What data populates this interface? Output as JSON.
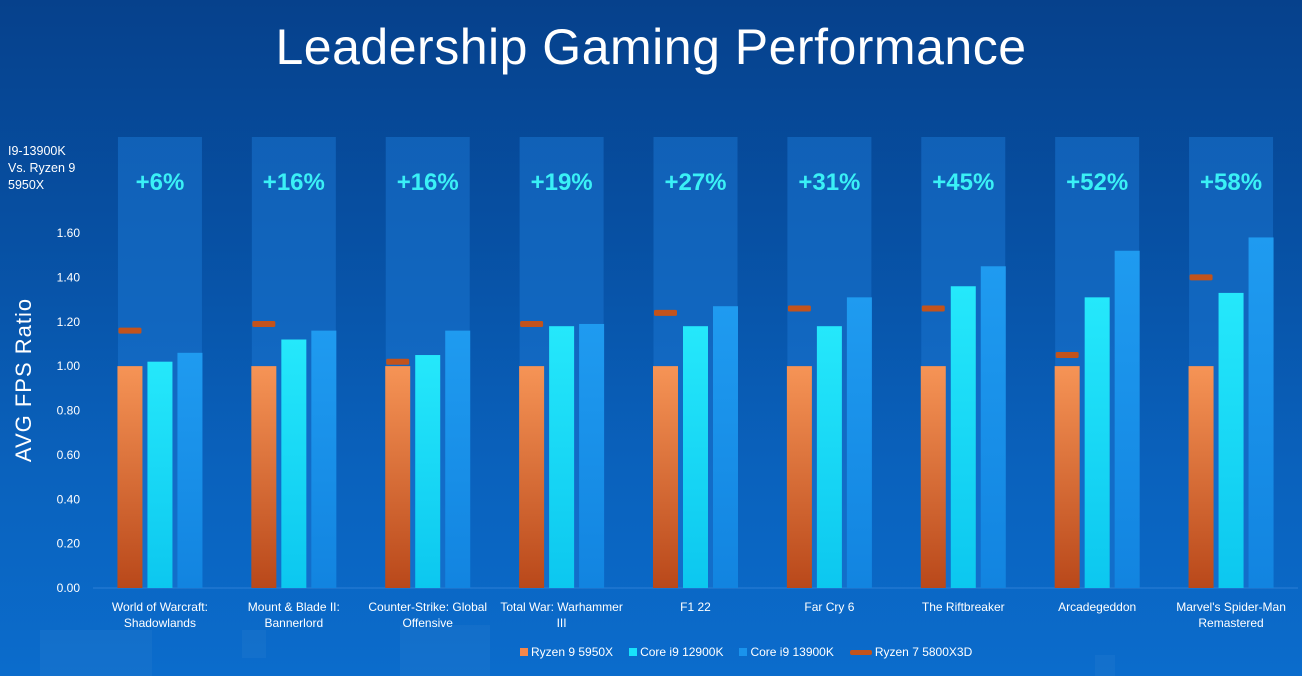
{
  "header": {
    "title": "Leadership Gaming Performance",
    "subtitle_lines": [
      "I9-13900K",
      "Vs. Ryzen 9",
      "5950X"
    ]
  },
  "colors": {
    "ryzen9_5950x": "#f5874a",
    "core_i9_12900k": "#18e2fb",
    "core_i9_13900k": "#1a93ec",
    "ryzen7_5800x3d": "#c2531c",
    "uplift_text": "#3af0f6",
    "uplift_band": "#1a74cf"
  },
  "chart_data": {
    "type": "bar",
    "title": "Leadership Gaming Performance",
    "ylabel": "AVG  FPS Ratio",
    "xlabel": "",
    "ylim": [
      0,
      1.6
    ],
    "yticks": [
      "0.00",
      "0.20",
      "0.40",
      "0.60",
      "0.80",
      "1.00",
      "1.20",
      "1.40",
      "1.60"
    ],
    "categories": [
      [
        "World of Warcraft:",
        "Shadowlands"
      ],
      [
        "Mount & Blade II:",
        "Bannerlord"
      ],
      [
        "Counter-Strike: Global",
        "Offensive"
      ],
      [
        "Total War: Warhammer",
        "III"
      ],
      [
        "F1 22"
      ],
      [
        "Far Cry 6"
      ],
      [
        "The Riftbreaker"
      ],
      [
        "Arcadegeddon"
      ],
      [
        "Marvel's Spider-Man",
        "Remastered"
      ]
    ],
    "uplift_labels": [
      "+6%",
      "+16%",
      "+16%",
      "+19%",
      "+27%",
      "+31%",
      "+45%",
      "+52%",
      "+58%"
    ],
    "series": [
      {
        "name": "Ryzen 9 5950X",
        "kind": "bar",
        "values": [
          1.0,
          1.0,
          1.0,
          1.0,
          1.0,
          1.0,
          1.0,
          1.0,
          1.0
        ]
      },
      {
        "name": "Core i9 12900K",
        "kind": "bar",
        "values": [
          1.02,
          1.12,
          1.05,
          1.18,
          1.18,
          1.18,
          1.36,
          1.31,
          1.33
        ]
      },
      {
        "name": "Core i9 13900K",
        "kind": "bar",
        "values": [
          1.06,
          1.16,
          1.16,
          1.19,
          1.27,
          1.31,
          1.45,
          1.52,
          1.58
        ]
      },
      {
        "name": "Ryzen 7  5800X3D",
        "kind": "marker",
        "values": [
          1.16,
          1.19,
          1.02,
          1.19,
          1.24,
          1.26,
          1.26,
          1.05,
          1.4
        ]
      }
    ],
    "legend_position": "bottom-center"
  }
}
